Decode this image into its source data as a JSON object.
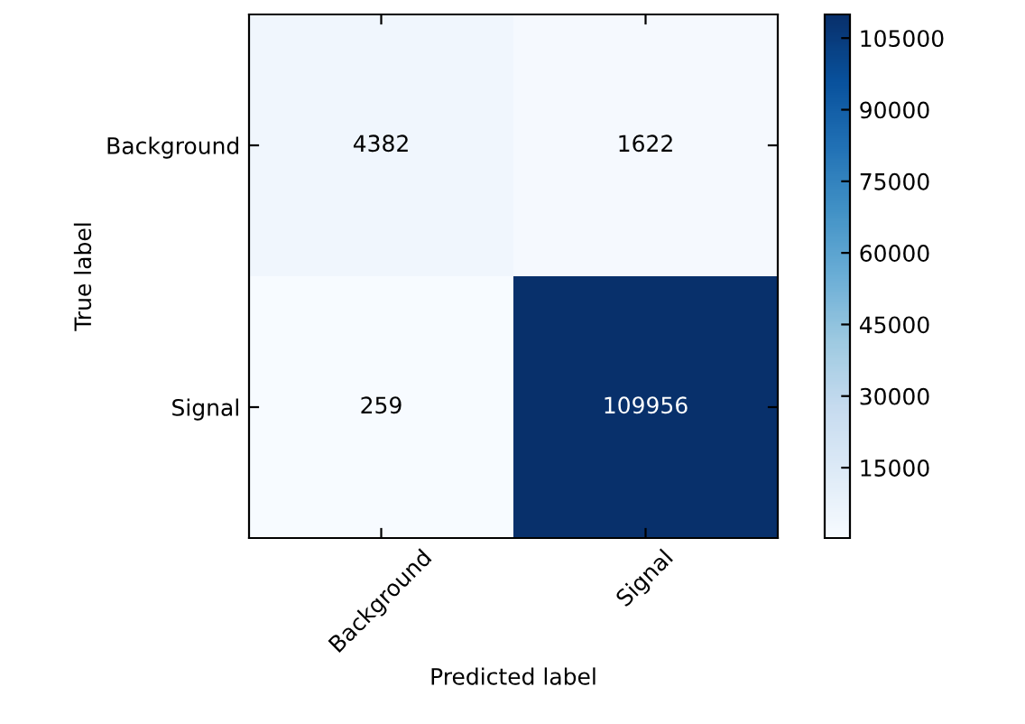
{
  "chart_data": {
    "type": "heatmap",
    "xlabel": "Predicted label",
    "ylabel": "True label",
    "categories": [
      "Background",
      "Signal"
    ],
    "y_categories": [
      "Background",
      "Signal"
    ],
    "cells": [
      [
        4382,
        1622
      ],
      [
        259,
        109956
      ]
    ],
    "clim": [
      259,
      109956
    ],
    "cticks": [
      15000,
      30000,
      45000,
      60000,
      75000,
      90000,
      105000
    ],
    "data_labels": true
  }
}
